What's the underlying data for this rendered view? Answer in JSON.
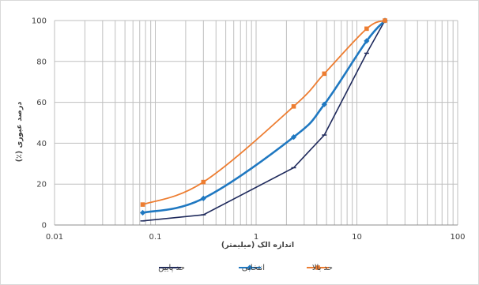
{
  "chart_data": {
    "type": "line",
    "xscale": "log",
    "xlabel": "اندازه الک (میلیمتر)",
    "ylabel": "درصد عبوری (٪)",
    "xlim": [
      0.01,
      100
    ],
    "ylim": [
      0,
      100
    ],
    "x_ticks": [
      "0.01",
      "0.1",
      "1",
      "10",
      "100"
    ],
    "y_ticks": [
      "0",
      "20",
      "40",
      "60",
      "80",
      "100"
    ],
    "grid": true,
    "legend_position": "bottom",
    "series": [
      {
        "name": "حد پایین",
        "color": "#1f2a5c",
        "marker": "dash",
        "points": [
          [
            0.075,
            2
          ],
          [
            0.3,
            5
          ],
          [
            2.36,
            28
          ],
          [
            4.75,
            44
          ],
          [
            12.5,
            84
          ],
          [
            19,
            100
          ]
        ]
      },
      {
        "name": "انتخابی",
        "color": "#1f78c1",
        "marker": "diamond",
        "points": [
          [
            0.075,
            6
          ],
          [
            0.3,
            13
          ],
          [
            2.36,
            43
          ],
          [
            4.75,
            59
          ],
          [
            12.5,
            90
          ],
          [
            19,
            100
          ]
        ]
      },
      {
        "name": "حد بالا",
        "color": "#ed7d31",
        "marker": "square",
        "points": [
          [
            0.075,
            10
          ],
          [
            0.3,
            21
          ],
          [
            2.36,
            58
          ],
          [
            4.75,
            74
          ],
          [
            12.5,
            96
          ],
          [
            19,
            100
          ]
        ]
      }
    ]
  }
}
